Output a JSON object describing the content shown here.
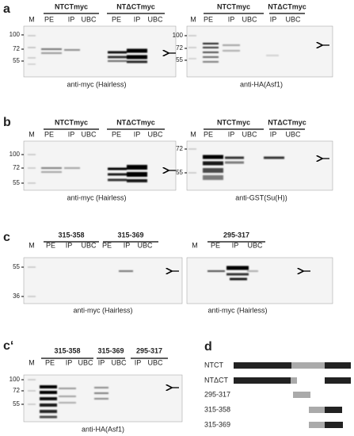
{
  "panels": [
    {
      "label": "a",
      "blots": [
        {
          "groups": [
            "NTCTmyc",
            "NTΔCTmyc"
          ],
          "lanes": [
            "M",
            "PE",
            "IP",
            "UBC",
            "PE",
            "IP",
            "UBC"
          ],
          "markers": [
            "100",
            "72",
            "55"
          ],
          "caption": "anti-myc (Hairless)"
        },
        {
          "groups": [
            "NTCTmyc",
            "NTΔCTmyc"
          ],
          "lanes": [
            "M",
            "PE",
            "IP",
            "UBC",
            "IP",
            "UBC"
          ],
          "markers": [
            "100",
            "72",
            "55"
          ],
          "caption": "anti-HA(Asf1)"
        }
      ]
    },
    {
      "label": "b",
      "blots": [
        {
          "groups": [
            "NTCTmyc",
            "NTΔCTmyc"
          ],
          "lanes": [
            "M",
            "PE",
            "IP",
            "UBC",
            "PE",
            "IP",
            "UBC"
          ],
          "markers": [
            "100",
            "72",
            "55"
          ],
          "caption": "anti-myc (Hairless)"
        },
        {
          "groups": [
            "NTCTmyc",
            "NTΔCTmyc"
          ],
          "lanes": [
            "M",
            "PE",
            "IP",
            "UBC",
            "IP",
            "UBC"
          ],
          "markers": [
            "72",
            "55"
          ],
          "caption": "anti-GST(Su(H))"
        }
      ]
    },
    {
      "label": "c",
      "blots": [
        {
          "groups": [
            "315-358",
            "315-369"
          ],
          "lanes": [
            "M",
            "PE",
            "IP",
            "UBC",
            "PE",
            "IP",
            "UBC"
          ],
          "markers": [
            "55",
            "36"
          ],
          "caption": "anti-myc (Hairless)"
        },
        {
          "groups": [
            "295-317"
          ],
          "lanes": [
            "M",
            "PE",
            "IP",
            "UBC"
          ],
          "markers": [],
          "caption": "anti-myc (Hairless)"
        }
      ]
    },
    {
      "label": "c‘",
      "blots": [
        {
          "groups": [
            "315-358",
            "315-369",
            "295-317"
          ],
          "lanes": [
            "M",
            "PE",
            "IP",
            "UBC",
            "IP",
            "UBC",
            "IP",
            "UBC"
          ],
          "markers": [
            "100",
            "72",
            "55"
          ],
          "caption": "anti-HA(Asf1)"
        }
      ]
    }
  ],
  "diagram": {
    "label": "d",
    "rows": [
      "NTCT",
      "NTΔCT",
      "295-317",
      "315-358",
      "315-369"
    ]
  }
}
